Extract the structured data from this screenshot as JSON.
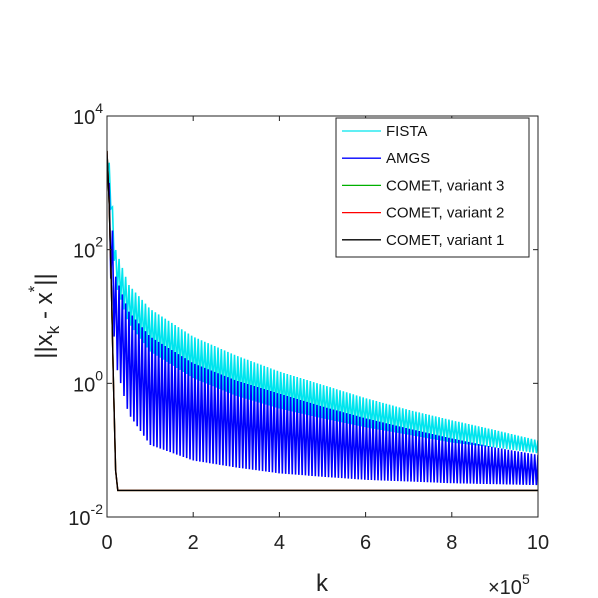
{
  "chart_data": {
    "type": "line",
    "title": "",
    "xlabel": "k",
    "ylabel_parts": {
      "base": "||x",
      "sub": "k",
      "mid": " - x",
      "sup": "*",
      "end": "||"
    },
    "x_multiplier": {
      "base": "×10",
      "exp": "5"
    },
    "xlim": [
      0,
      10
    ],
    "ylim_log10": [
      -2,
      4
    ],
    "yscale": "log",
    "x_ticks": [
      "0",
      "2",
      "4",
      "6",
      "8",
      "10"
    ],
    "y_ticks": [
      {
        "base": "10",
        "exp": "4"
      },
      {
        "base": "10",
        "exp": "2"
      },
      {
        "base": "10",
        "exp": "0"
      },
      {
        "base": "10",
        "exp": "-2"
      }
    ],
    "grid": false,
    "legend_position": "top-right",
    "series": [
      {
        "name": "FISTA",
        "color": "#00e5ee",
        "style": "oscillating-band",
        "upper": [
          [
            0.05,
            2000
          ],
          [
            0.2,
            100
          ],
          [
            0.5,
            30
          ],
          [
            1,
            13
          ],
          [
            2,
            5
          ],
          [
            3,
            2.6
          ],
          [
            4,
            1.5
          ],
          [
            5,
            0.95
          ],
          [
            6,
            0.6
          ],
          [
            7,
            0.4
          ],
          [
            8,
            0.28
          ],
          [
            9,
            0.2
          ],
          [
            10,
            0.14
          ]
        ],
        "lower": [
          [
            0.05,
            1000
          ],
          [
            0.2,
            30
          ],
          [
            0.5,
            8
          ],
          [
            1,
            3
          ],
          [
            2,
            1.2
          ],
          [
            3,
            0.65
          ],
          [
            4,
            0.42
          ],
          [
            5,
            0.3
          ],
          [
            6,
            0.22
          ],
          [
            7,
            0.17
          ],
          [
            8,
            0.13
          ],
          [
            9,
            0.11
          ],
          [
            10,
            0.09
          ]
        ]
      },
      {
        "name": "AMGS",
        "color": "#0000ff",
        "style": "oscillating-band",
        "upper": [
          [
            0.05,
            1000
          ],
          [
            0.2,
            40
          ],
          [
            0.5,
            12
          ],
          [
            1,
            5
          ],
          [
            2,
            2
          ],
          [
            3,
            1.1
          ],
          [
            4,
            0.7
          ],
          [
            5,
            0.45
          ],
          [
            6,
            0.3
          ],
          [
            7,
            0.21
          ],
          [
            8,
            0.15
          ],
          [
            9,
            0.11
          ],
          [
            10,
            0.085
          ]
        ],
        "lower": [
          [
            0.05,
            100
          ],
          [
            0.2,
            2
          ],
          [
            0.5,
            0.35
          ],
          [
            1,
            0.12
          ],
          [
            2,
            0.07
          ],
          [
            3,
            0.055
          ],
          [
            4,
            0.045
          ],
          [
            5,
            0.04
          ],
          [
            6,
            0.036
          ],
          [
            7,
            0.034
          ],
          [
            8,
            0.032
          ],
          [
            9,
            0.031
          ],
          [
            10,
            0.03
          ]
        ]
      },
      {
        "name": "COMET, variant 3",
        "color": "#00b000",
        "style": "line",
        "points": [
          [
            0,
            3000
          ],
          [
            0.05,
            500
          ],
          [
            0.1,
            30
          ],
          [
            0.15,
            1
          ],
          [
            0.2,
            0.05
          ],
          [
            0.25,
            0.025
          ],
          [
            10,
            0.025
          ]
        ]
      },
      {
        "name": "COMET, variant 2",
        "color": "#ff0000",
        "style": "line",
        "points": [
          [
            0,
            3000
          ],
          [
            0.05,
            500
          ],
          [
            0.1,
            30
          ],
          [
            0.15,
            1
          ],
          [
            0.2,
            0.05
          ],
          [
            0.25,
            0.025
          ],
          [
            10,
            0.025
          ]
        ]
      },
      {
        "name": "COMET, variant 1",
        "color": "#000000",
        "style": "line",
        "points": [
          [
            0,
            3000
          ],
          [
            0.05,
            500
          ],
          [
            0.1,
            30
          ],
          [
            0.15,
            1
          ],
          [
            0.2,
            0.05
          ],
          [
            0.25,
            0.025
          ],
          [
            10,
            0.025
          ]
        ]
      }
    ]
  }
}
